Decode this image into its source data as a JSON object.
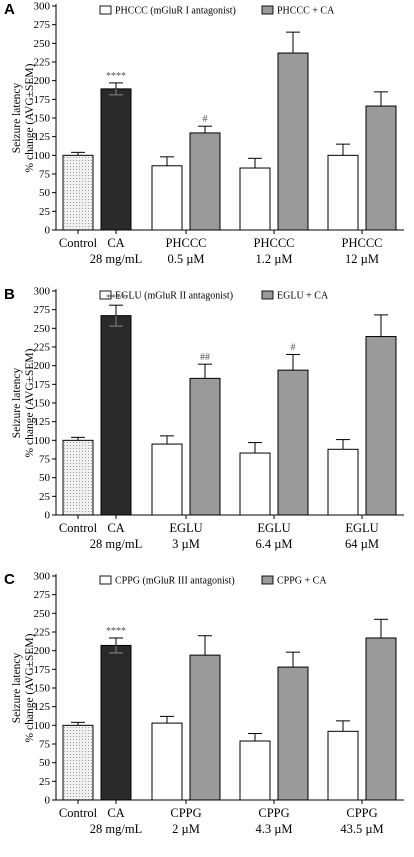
{
  "chart_data": [
    {
      "type": "bar",
      "panel": "A",
      "ylabel": [
        "Seizure latency",
        "% change (AVG±SEM)"
      ],
      "ylim": [
        0,
        300
      ],
      "yticks": [
        0,
        25,
        50,
        75,
        100,
        125,
        150,
        175,
        200,
        225,
        250,
        275,
        300
      ],
      "legend": [
        {
          "label": "PHCCC (mGluR I antagonist)",
          "color": "#ffffff"
        },
        {
          "label": "PHCCC + CA",
          "color": "#9a9a9a"
        }
      ],
      "bars": [
        {
          "value": 100,
          "err": 4,
          "style": "control",
          "annotation": ""
        },
        {
          "value": 189,
          "err": 8,
          "style": "dark",
          "annotation": "****"
        },
        {
          "value": 86,
          "err": 12,
          "style": "white",
          "annotation": ""
        },
        {
          "value": 130,
          "err": 9,
          "style": "gray",
          "annotation": "#"
        },
        {
          "value": 83,
          "err": 13,
          "style": "white",
          "annotation": ""
        },
        {
          "value": 237,
          "err": 28,
          "style": "gray",
          "annotation": ""
        },
        {
          "value": 100,
          "err": 15,
          "style": "white",
          "annotation": ""
        },
        {
          "value": 166,
          "err": 19,
          "style": "gray",
          "annotation": ""
        }
      ],
      "categories": [
        {
          "line1": "Control",
          "line2": ""
        },
        {
          "line1": "CA",
          "line2": "28 mg/mL"
        },
        {
          "line1": "PHCCC",
          "line2": "0.5 µM"
        },
        {
          "line1": "PHCCC",
          "line2": "1.2 µM"
        },
        {
          "line1": "PHCCC",
          "line2": "12 µM"
        }
      ]
    },
    {
      "type": "bar",
      "panel": "B",
      "ylabel": [
        "Seizure latency",
        "% change (AVG±SEM)"
      ],
      "ylim": [
        0,
        300
      ],
      "yticks": [
        0,
        25,
        50,
        75,
        100,
        125,
        150,
        175,
        200,
        225,
        250,
        275,
        300
      ],
      "legend": [
        {
          "label": "EGLU (mGluR II antagonist)",
          "color": "#ffffff"
        },
        {
          "label": "EGLU + CA",
          "color": "#9a9a9a"
        }
      ],
      "bars": [
        {
          "value": 100,
          "err": 4,
          "style": "control",
          "annotation": ""
        },
        {
          "value": 267,
          "err": 14,
          "style": "dark",
          "annotation": "****"
        },
        {
          "value": 95,
          "err": 11,
          "style": "white",
          "annotation": ""
        },
        {
          "value": 183,
          "err": 19,
          "style": "gray",
          "annotation": "##"
        },
        {
          "value": 83,
          "err": 14,
          "style": "white",
          "annotation": ""
        },
        {
          "value": 194,
          "err": 21,
          "style": "gray",
          "annotation": "#"
        },
        {
          "value": 88,
          "err": 13,
          "style": "white",
          "annotation": ""
        },
        {
          "value": 239,
          "err": 29,
          "style": "gray",
          "annotation": ""
        }
      ],
      "categories": [
        {
          "line1": "Control",
          "line2": ""
        },
        {
          "line1": "CA",
          "line2": "28 mg/mL"
        },
        {
          "line1": "EGLU",
          "line2": "3 µM"
        },
        {
          "line1": "EGLU",
          "line2": "6.4 µM"
        },
        {
          "line1": "EGLU",
          "line2": "64 µM"
        }
      ]
    },
    {
      "type": "bar",
      "panel": "C",
      "ylabel": [
        "Seizure latency",
        "% change (AVG±SEM)"
      ],
      "ylim": [
        0,
        300
      ],
      "yticks": [
        0,
        25,
        50,
        75,
        100,
        125,
        150,
        175,
        200,
        225,
        250,
        275,
        300
      ],
      "legend": [
        {
          "label": "CPPG (mGluR III antagonist)",
          "color": "#ffffff"
        },
        {
          "label": "CPPG + CA",
          "color": "#9a9a9a"
        }
      ],
      "bars": [
        {
          "value": 100,
          "err": 4,
          "style": "control",
          "annotation": ""
        },
        {
          "value": 207,
          "err": 10,
          "style": "dark",
          "annotation": "****"
        },
        {
          "value": 103,
          "err": 9,
          "style": "white",
          "annotation": ""
        },
        {
          "value": 194,
          "err": 26,
          "style": "gray",
          "annotation": ""
        },
        {
          "value": 79,
          "err": 10,
          "style": "white",
          "annotation": ""
        },
        {
          "value": 178,
          "err": 20,
          "style": "gray",
          "annotation": ""
        },
        {
          "value": 92,
          "err": 14,
          "style": "white",
          "annotation": ""
        },
        {
          "value": 217,
          "err": 25,
          "style": "gray",
          "annotation": ""
        }
      ],
      "categories": [
        {
          "line1": "Control",
          "line2": ""
        },
        {
          "line1": "CA",
          "line2": "28 mg/mL"
        },
        {
          "line1": "CPPG",
          "line2": "2 µM"
        },
        {
          "line1": "CPPG",
          "line2": "4.3 µM"
        },
        {
          "line1": "CPPG",
          "line2": "43.5 µM"
        }
      ]
    }
  ],
  "colors": {
    "dark": "#2a2a2a",
    "gray": "#9a9a9a",
    "white": "#ffffff",
    "control": "#e6e6e6",
    "axis": "#000000"
  }
}
